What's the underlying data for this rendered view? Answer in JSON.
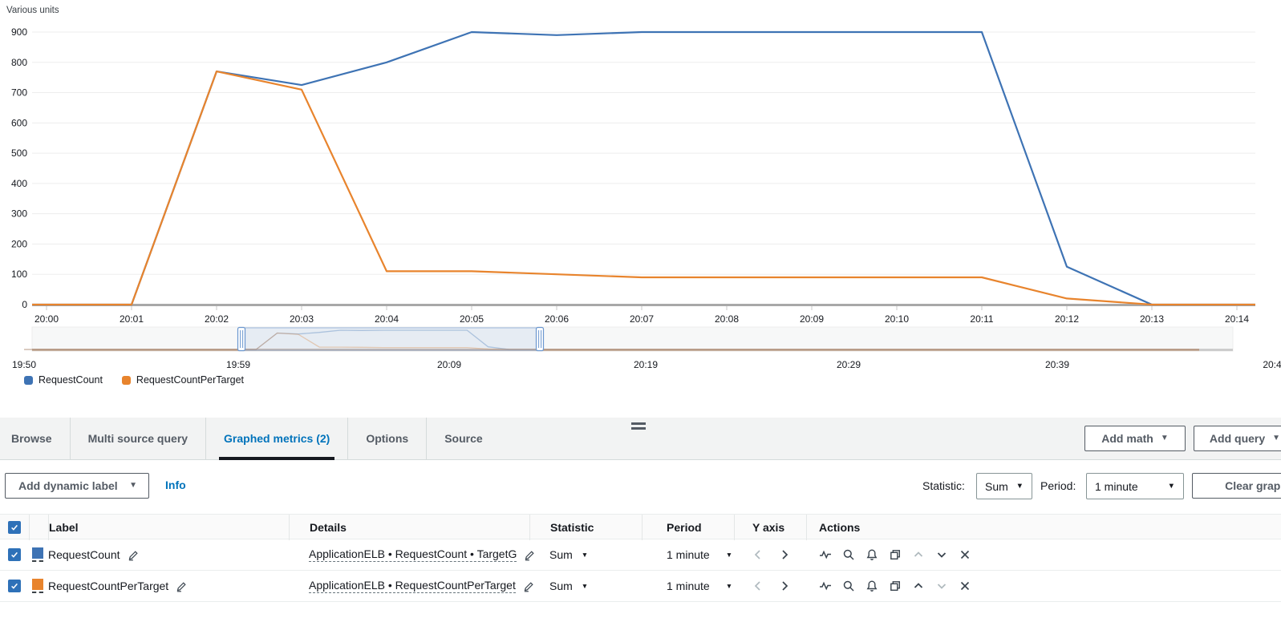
{
  "chart": {
    "unit_label": "Various units"
  },
  "chart_data": {
    "type": "line",
    "title": "Various units",
    "x": [
      "20:00",
      "20:01",
      "20:02",
      "20:03",
      "20:04",
      "20:05",
      "20:06",
      "20:07",
      "20:08",
      "20:09",
      "20:10",
      "20:11",
      "20:12",
      "20:13",
      "20:14"
    ],
    "series": [
      {
        "name": "RequestCount",
        "color": "#3e73b4",
        "values": [
          0,
          0,
          770,
          725,
          800,
          900,
          890,
          900,
          900,
          900,
          900,
          900,
          125,
          0,
          0
        ]
      },
      {
        "name": "RequestCountPerTarget",
        "color": "#e8842d",
        "values": [
          0,
          0,
          770,
          710,
          110,
          110,
          100,
          90,
          90,
          90,
          90,
          90,
          20,
          0,
          0
        ]
      }
    ],
    "ylim": [
      0,
      900
    ],
    "y_ticks": [
      0,
      100,
      200,
      300,
      400,
      500,
      600,
      700,
      800,
      900
    ],
    "grid": "horizontal",
    "legend_position": "bottom-left",
    "statistic": "Sum",
    "period": "1 minute",
    "brush": {
      "labels": [
        "19:50",
        "19:59",
        "20:09",
        "20:19",
        "20:29",
        "20:39",
        "20:4"
      ],
      "selection_approx": [
        "20:00",
        "20:15"
      ]
    }
  },
  "icons": {
    "caret_down": "▼"
  },
  "tabs": {
    "items": [
      {
        "label": "Browse",
        "active": false
      },
      {
        "label": "Multi source query",
        "active": false
      },
      {
        "label": "Graphed metrics (2)",
        "active": true
      },
      {
        "label": "Options",
        "active": false
      },
      {
        "label": "Source",
        "active": false
      }
    ]
  },
  "toolbar": {
    "add_math_label": "Add math",
    "add_query_label": "Add query"
  },
  "controls": {
    "add_dynamic_label": "Add dynamic label",
    "info_label": "Info",
    "statistic_label": "Statistic:",
    "statistic_value": "Sum",
    "period_label": "Period:",
    "period_value": "1 minute",
    "clear_graph_label": "Clear graph"
  },
  "table": {
    "headers": {
      "label": "Label",
      "details": "Details",
      "statistic": "Statistic",
      "period": "Period",
      "y_axis": "Y axis",
      "actions": "Actions"
    },
    "rows": [
      {
        "checked": true,
        "color": "#3e73b4",
        "label": "RequestCount",
        "details": "ApplicationELB • RequestCount • TargetG",
        "statistic": "Sum",
        "period": "1 minute",
        "move_up_enabled": false,
        "move_down_enabled": true
      },
      {
        "checked": true,
        "color": "#e8842d",
        "label": "RequestCountPerTarget",
        "details": "ApplicationELB • RequestCountPerTarget",
        "statistic": "Sum",
        "period": "1 minute",
        "move_up_enabled": true,
        "move_down_enabled": false
      }
    ]
  }
}
